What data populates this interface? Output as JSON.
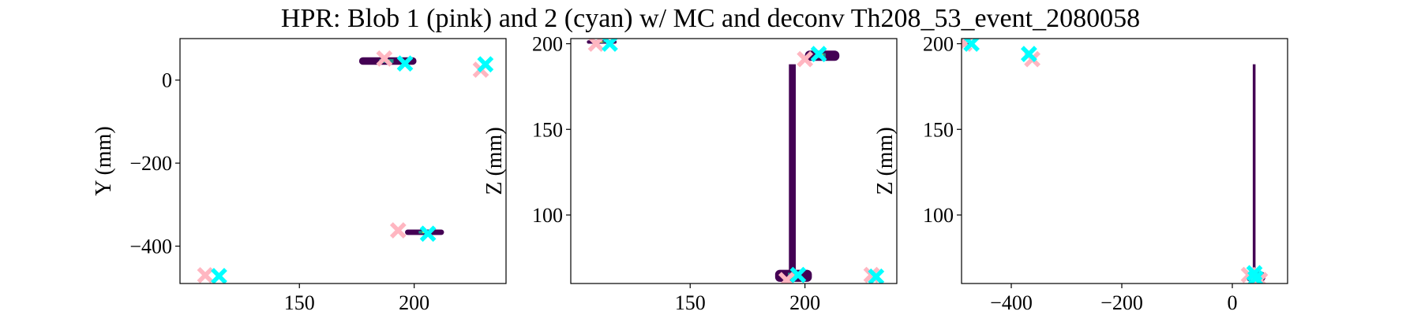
{
  "figure": {
    "title": "HPR: Blob 1 (pink) and 2 (cyan) w/ MC and deconv Th208_53_event_2080058"
  },
  "colors": {
    "blob1": "#ffb6c1",
    "blob2": "#00ffff",
    "hit_fill": "#440154",
    "hit_teal": "#21918c",
    "hit_yellow": "#fde725"
  },
  "chart_data": [
    {
      "type": "scatter",
      "panel": "X-Y projection",
      "xlabel": "",
      "ylabel": "Y (mm)",
      "xlim": [
        98,
        240
      ],
      "ylim": [
        -490,
        100
      ],
      "xticks": [
        150,
        200
      ],
      "yticks": [
        0,
        -200,
        -400
      ],
      "grid": false,
      "hit_regions": [
        {
          "x0": 176,
          "x1": 201,
          "y0": 37,
          "y1": 55
        },
        {
          "x0": 196,
          "x1": 213,
          "y0": -373,
          "y1": -360
        }
      ],
      "series": [
        {
          "name": "Blob 1",
          "color": "pink",
          "points": [
            [
              109,
              -470
            ],
            [
              187,
              52
            ],
            [
              193,
              -362
            ],
            [
              229,
              25
            ]
          ]
        },
        {
          "name": "Blob 2",
          "color": "cyan",
          "points": [
            [
              115,
              -472
            ],
            [
              196,
              40
            ],
            [
              206,
              -370
            ],
            [
              231,
              38
            ]
          ]
        }
      ]
    },
    {
      "type": "scatter",
      "panel": "X-Z projection",
      "xlabel": "",
      "ylabel": "Z (mm)",
      "xlim": [
        98,
        240
      ],
      "ylim": [
        60,
        203
      ],
      "xticks": [
        150,
        200
      ],
      "yticks": [
        200,
        150,
        100
      ],
      "grid": false,
      "hit_regions": [
        {
          "x0": 193,
          "x1": 196,
          "y0": 62,
          "y1": 188
        },
        {
          "x0": 187,
          "x1": 203,
          "y0": 61,
          "y1": 68
        },
        {
          "x0": 200,
          "x1": 215,
          "y0": 190,
          "y1": 196
        },
        {
          "x0": 105,
          "x1": 118,
          "y0": 200,
          "y1": 202
        }
      ],
      "series": [
        {
          "name": "Blob 1",
          "color": "pink",
          "points": [
            [
              109,
              200
            ],
            [
              192,
              62
            ],
            [
              200,
              191
            ],
            [
              229,
              65
            ]
          ]
        },
        {
          "name": "Blob 2",
          "color": "cyan",
          "points": [
            [
              115,
              200
            ],
            [
              197,
              65
            ],
            [
              206,
              194
            ],
            [
              231,
              64
            ]
          ]
        }
      ]
    },
    {
      "type": "scatter",
      "panel": "Y-Z projection",
      "xlabel": "",
      "ylabel": "Z (mm)",
      "xlim": [
        -490,
        100
      ],
      "ylim": [
        60,
        203
      ],
      "xticks": [
        -400,
        -200,
        0
      ],
      "yticks": [
        200,
        150,
        100
      ],
      "grid": false,
      "hit_regions": [
        {
          "x0": 37,
          "x1": 42,
          "y0": 62,
          "y1": 188
        },
        {
          "x0": 25,
          "x1": 60,
          "y0": 61,
          "y1": 67
        },
        {
          "x0": -490,
          "x1": -470,
          "y0": 199,
          "y1": 202
        }
      ],
      "series": [
        {
          "name": "Blob 1",
          "color": "pink",
          "points": [
            [
              -485,
              200
            ],
            [
              -362,
              191
            ],
            [
              30,
              65
            ],
            [
              50,
              62
            ]
          ]
        },
        {
          "name": "Blob 2",
          "color": "cyan",
          "points": [
            [
              -472,
              200
            ],
            [
              -368,
              194
            ],
            [
              40,
              66
            ],
            [
              42,
              63
            ]
          ]
        }
      ]
    }
  ]
}
